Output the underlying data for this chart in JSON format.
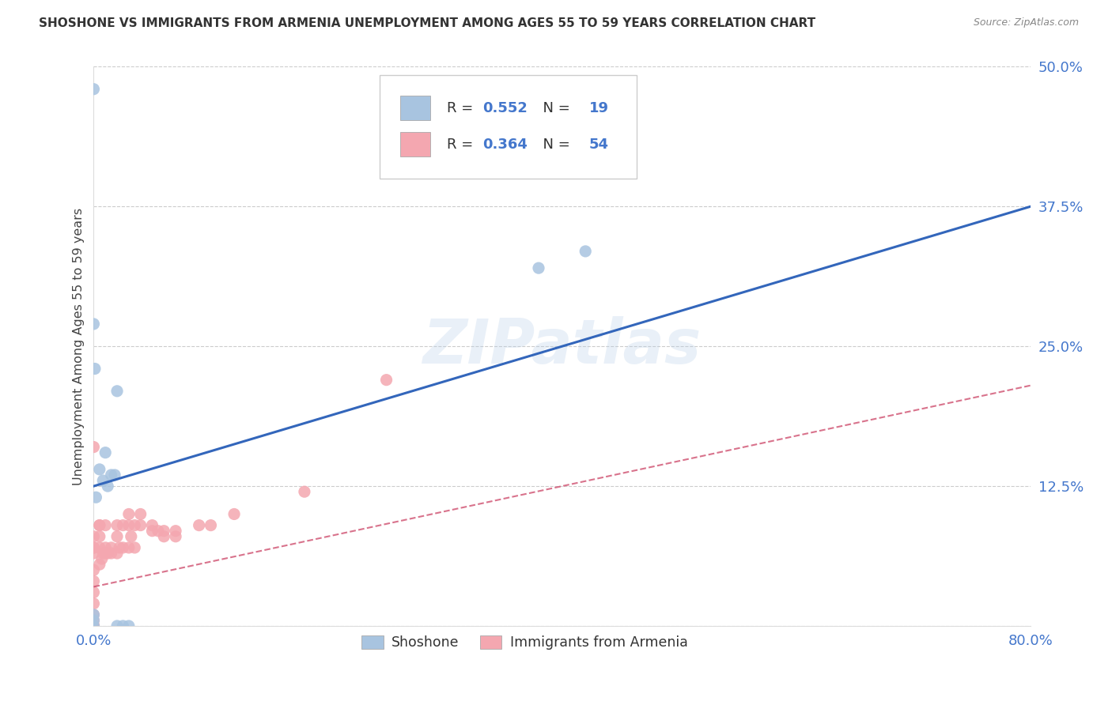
{
  "title": "SHOSHONE VS IMMIGRANTS FROM ARMENIA UNEMPLOYMENT AMONG AGES 55 TO 59 YEARS CORRELATION CHART",
  "source": "Source: ZipAtlas.com",
  "ylabel": "Unemployment Among Ages 55 to 59 years",
  "xlim": [
    0.0,
    0.8
  ],
  "ylim": [
    0.0,
    0.5
  ],
  "xticks": [
    0.0,
    0.2,
    0.4,
    0.6,
    0.8
  ],
  "xtick_labels": [
    "0.0%",
    "",
    "",
    "",
    "80.0%"
  ],
  "yticks": [
    0.0,
    0.125,
    0.25,
    0.375,
    0.5
  ],
  "ytick_labels": [
    "",
    "12.5%",
    "25.0%",
    "37.5%",
    "50.0%"
  ],
  "shoshone_color": "#a8c4e0",
  "armenia_color": "#f4a7b0",
  "shoshone_line_color": "#3366bb",
  "armenia_line_color": "#cc4466",
  "R_shoshone": 0.552,
  "N_shoshone": 19,
  "R_armenia": 0.364,
  "N_armenia": 54,
  "watermark": "ZIPatlas",
  "shoshone_x": [
    0.002,
    0.005,
    0.008,
    0.01,
    0.012,
    0.015,
    0.018,
    0.02,
    0.02,
    0.025,
    0.03,
    0.0,
    0.0,
    0.001,
    0.0,
    0.38,
    0.42,
    0.0,
    0.0
  ],
  "shoshone_y": [
    0.115,
    0.14,
    0.13,
    0.155,
    0.125,
    0.135,
    0.135,
    0.21,
    0.0,
    0.0,
    0.0,
    0.48,
    0.27,
    0.23,
    0.0,
    0.32,
    0.335,
    0.005,
    0.01
  ],
  "armenia_x": [
    0.0,
    0.0,
    0.0,
    0.0,
    0.0,
    0.0,
    0.0,
    0.0,
    0.0,
    0.0,
    0.005,
    0.005,
    0.005,
    0.005,
    0.005,
    0.007,
    0.008,
    0.01,
    0.01,
    0.01,
    0.012,
    0.015,
    0.015,
    0.02,
    0.02,
    0.02,
    0.022,
    0.025,
    0.025,
    0.03,
    0.03,
    0.03,
    0.032,
    0.035,
    0.035,
    0.04,
    0.04,
    0.05,
    0.05,
    0.055,
    0.06,
    0.06,
    0.07,
    0.07,
    0.09,
    0.1,
    0.12,
    0.18,
    0.25,
    0.0,
    0.0,
    0.0,
    0.0,
    0.0
  ],
  "armenia_y": [
    0.0,
    0.0,
    0.0,
    0.0,
    0.005,
    0.01,
    0.02,
    0.03,
    0.04,
    0.05,
    0.055,
    0.07,
    0.08,
    0.09,
    0.09,
    0.06,
    0.065,
    0.07,
    0.065,
    0.09,
    0.065,
    0.07,
    0.065,
    0.065,
    0.08,
    0.09,
    0.07,
    0.07,
    0.09,
    0.07,
    0.09,
    0.1,
    0.08,
    0.07,
    0.09,
    0.09,
    0.1,
    0.085,
    0.09,
    0.085,
    0.08,
    0.085,
    0.08,
    0.085,
    0.09,
    0.09,
    0.1,
    0.12,
    0.22,
    0.065,
    0.07,
    0.07,
    0.08,
    0.16
  ],
  "shoshone_line_x0": 0.0,
  "shoshone_line_y0": 0.125,
  "shoshone_line_x1": 0.8,
  "shoshone_line_y1": 0.375,
  "armenia_line_x0": 0.0,
  "armenia_line_y0": 0.035,
  "armenia_line_x1": 0.8,
  "armenia_line_y1": 0.215
}
